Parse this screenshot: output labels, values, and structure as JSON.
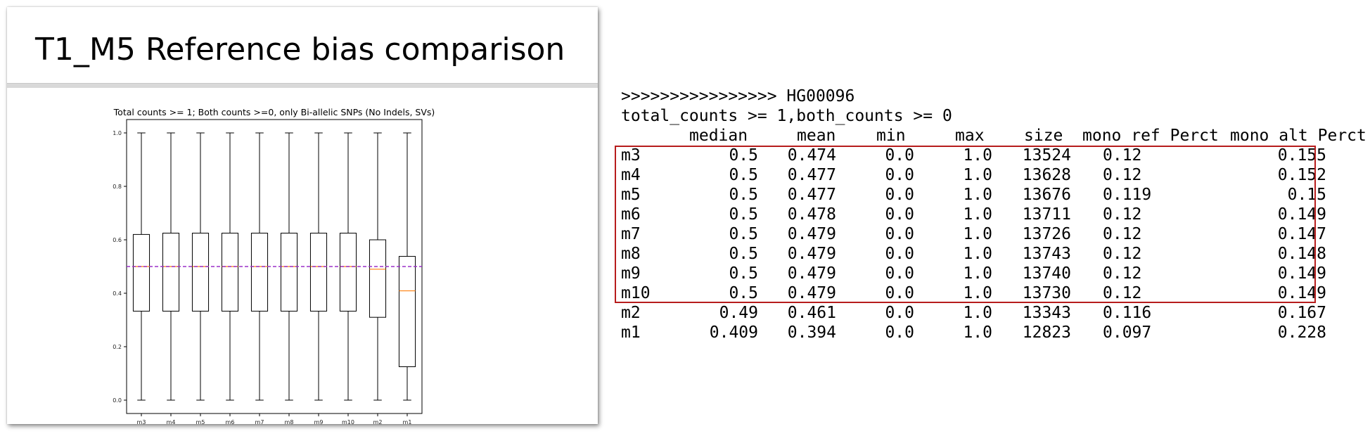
{
  "slide": {
    "title": "T1_M5 Reference bias comparison"
  },
  "chart_data": {
    "type": "boxplot",
    "title": "Total counts >= 1; Both counts >=0, only Bi-allelic SNPs (No Indels, SVs)",
    "categories": [
      "m3",
      "m4",
      "m5",
      "m6",
      "m7",
      "m8",
      "m9",
      "m10",
      "m2",
      "m1"
    ],
    "boxes": [
      {
        "whislo": 0.0,
        "q1": 0.333,
        "med": 0.5,
        "q3": 0.62,
        "whishi": 1.0
      },
      {
        "whislo": 0.0,
        "q1": 0.333,
        "med": 0.5,
        "q3": 0.625,
        "whishi": 1.0
      },
      {
        "whislo": 0.0,
        "q1": 0.333,
        "med": 0.5,
        "q3": 0.625,
        "whishi": 1.0
      },
      {
        "whislo": 0.0,
        "q1": 0.333,
        "med": 0.5,
        "q3": 0.625,
        "whishi": 1.0
      },
      {
        "whislo": 0.0,
        "q1": 0.333,
        "med": 0.5,
        "q3": 0.625,
        "whishi": 1.0
      },
      {
        "whislo": 0.0,
        "q1": 0.333,
        "med": 0.5,
        "q3": 0.625,
        "whishi": 1.0
      },
      {
        "whislo": 0.0,
        "q1": 0.333,
        "med": 0.5,
        "q3": 0.625,
        "whishi": 1.0
      },
      {
        "whislo": 0.0,
        "q1": 0.333,
        "med": 0.5,
        "q3": 0.625,
        "whishi": 1.0
      },
      {
        "whislo": 0.0,
        "q1": 0.31,
        "med": 0.49,
        "q3": 0.6,
        "whishi": 1.0
      },
      {
        "whislo": 0.0,
        "q1": 0.125,
        "med": 0.409,
        "q3": 0.538,
        "whishi": 1.0
      }
    ],
    "reference_line": 0.5,
    "ylim": [
      -0.05,
      1.05
    ],
    "yticks": [
      "0.0",
      "0.2",
      "0.4",
      "0.6",
      "0.8",
      "1.0"
    ],
    "colors": {
      "box": "#000000",
      "median": "#ff7f0e",
      "reference_line": "#9b30c8"
    }
  },
  "terminal": {
    "header_line": ">>>>>>>>>>>>>>>> HG00096",
    "filter_line": "total_counts >= 1,both_counts >= 0",
    "columns": [
      "median",
      "mean",
      "min",
      "max",
      "size",
      "mono ref Perct",
      "mono alt Perct"
    ],
    "rows": [
      {
        "name": "m3",
        "median": "0.5",
        "mean": "0.474",
        "min": "0.0",
        "max": "1.0",
        "size": "13524",
        "mono_ref": "0.12",
        "mono_alt": "0.155"
      },
      {
        "name": "m4",
        "median": "0.5",
        "mean": "0.477",
        "min": "0.0",
        "max": "1.0",
        "size": "13628",
        "mono_ref": "0.12",
        "mono_alt": "0.152"
      },
      {
        "name": "m5",
        "median": "0.5",
        "mean": "0.477",
        "min": "0.0",
        "max": "1.0",
        "size": "13676",
        "mono_ref": "0.119",
        "mono_alt": "0.15"
      },
      {
        "name": "m6",
        "median": "0.5",
        "mean": "0.478",
        "min": "0.0",
        "max": "1.0",
        "size": "13711",
        "mono_ref": "0.12",
        "mono_alt": "0.149"
      },
      {
        "name": "m7",
        "median": "0.5",
        "mean": "0.479",
        "min": "0.0",
        "max": "1.0",
        "size": "13726",
        "mono_ref": "0.12",
        "mono_alt": "0.147"
      },
      {
        "name": "m8",
        "median": "0.5",
        "mean": "0.479",
        "min": "0.0",
        "max": "1.0",
        "size": "13743",
        "mono_ref": "0.12",
        "mono_alt": "0.148"
      },
      {
        "name": "m9",
        "median": "0.5",
        "mean": "0.479",
        "min": "0.0",
        "max": "1.0",
        "size": "13740",
        "mono_ref": "0.12",
        "mono_alt": "0.149"
      },
      {
        "name": "m10",
        "median": "0.5",
        "mean": "0.479",
        "min": "0.0",
        "max": "1.0",
        "size": "13730",
        "mono_ref": "0.12",
        "mono_alt": "0.149"
      },
      {
        "name": "m2",
        "median": "0.49",
        "mean": "0.461",
        "min": "0.0",
        "max": "1.0",
        "size": "13343",
        "mono_ref": "0.116",
        "mono_alt": "0.167"
      },
      {
        "name": "m1",
        "median": "0.409",
        "mean": "0.394",
        "min": "0.0",
        "max": "1.0",
        "size": "12823",
        "mono_ref": "0.097",
        "mono_alt": "0.228"
      }
    ],
    "highlight_color": "#b71c1c"
  }
}
